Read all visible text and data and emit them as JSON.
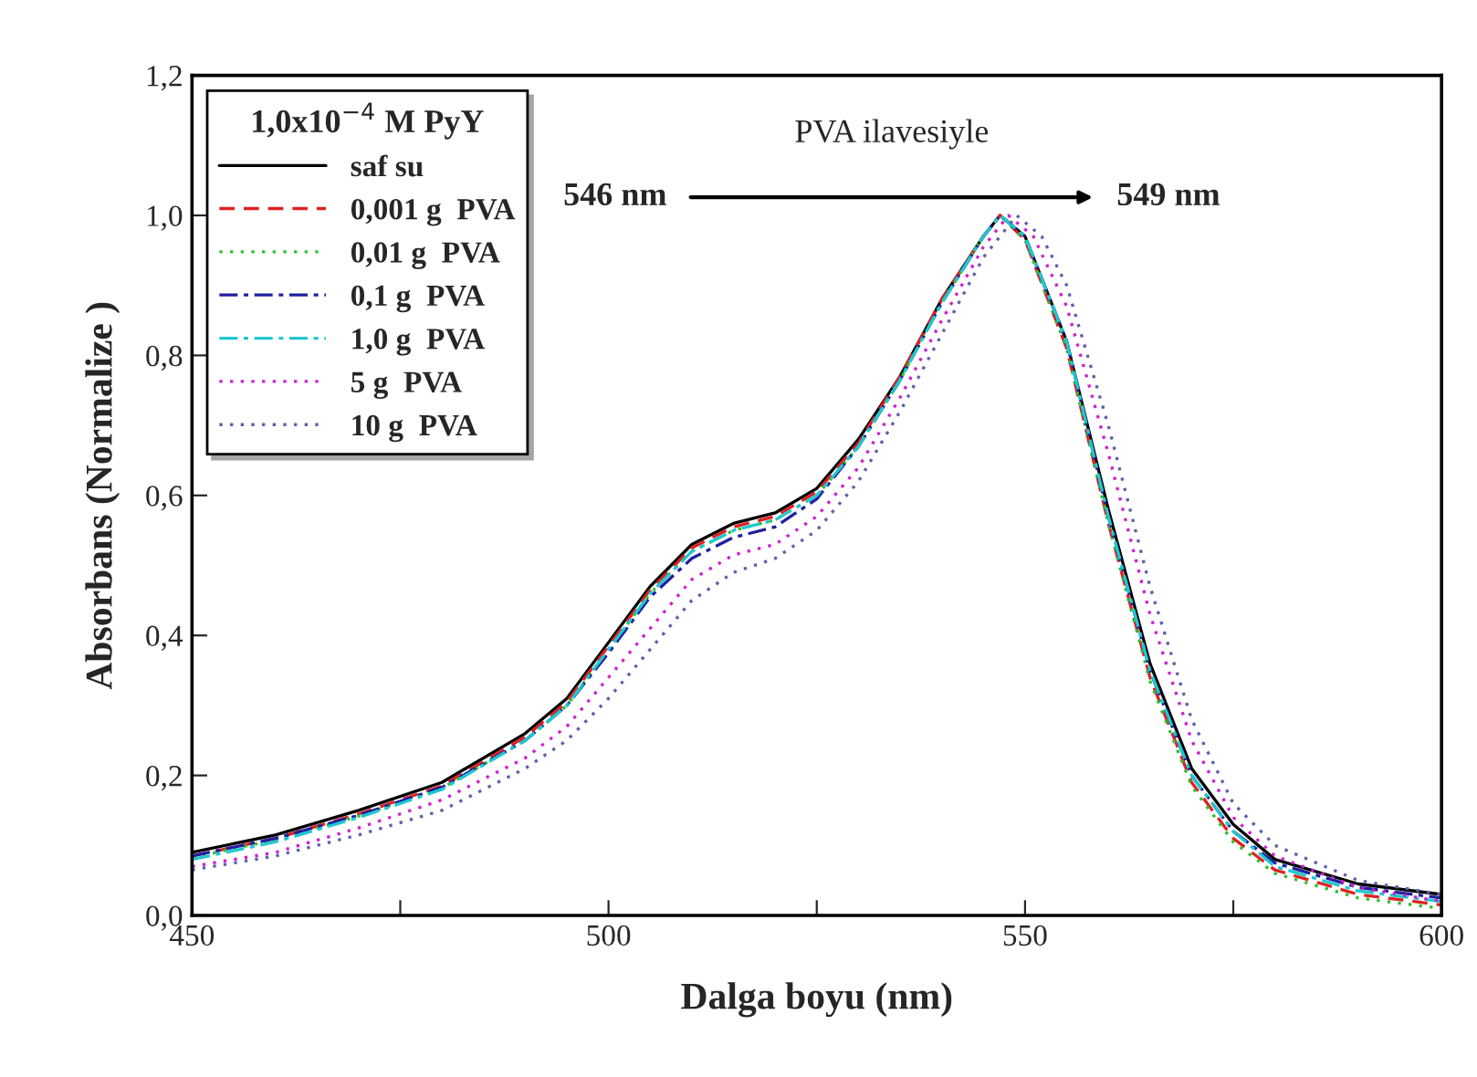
{
  "chart_data": {
    "type": "line",
    "xlabel": "Dalga boyu (nm)",
    "ylabel": "Absorbans (Normalize )",
    "legend_title": "1,0x10$^{−4}$ M PyY",
    "legend": "top left",
    "grid": false,
    "xlim": [
      450,
      600
    ],
    "ylim": [
      0,
      1.2
    ],
    "xticks": [
      450,
      {
        "value": 475,
        "label": null
      },
      500,
      {
        "value": 525,
        "label": null
      },
      550,
      {
        "value": 575,
        "label": null
      },
      600
    ],
    "yticks": [
      {
        "value": 0,
        "label": "0,0"
      },
      {
        "value": 0.2,
        "label": "0,2"
      },
      {
        "value": 0.4,
        "label": "0,4"
      },
      {
        "value": 0.6,
        "label": "0,6"
      },
      {
        "value": 0.8,
        "label": "0,8"
      },
      {
        "value": 1.0,
        "label": "1,0"
      },
      {
        "value": 1.2,
        "label": "1,2"
      }
    ],
    "annotations": [
      "PVA ilavesiyle",
      "546 nm",
      "549 nm"
    ],
    "x": [
      450,
      460,
      470,
      480,
      490,
      495,
      500,
      505,
      510,
      515,
      520,
      525,
      530,
      535,
      540,
      545,
      547,
      550,
      555,
      560,
      565,
      570,
      575,
      580,
      590,
      600
    ],
    "series": [
      {
        "name": "saf su",
        "color": "#000000",
        "line_style": "solid",
        "values": [
          0.09,
          0.115,
          0.15,
          0.19,
          0.26,
          0.31,
          0.39,
          0.47,
          0.53,
          0.56,
          0.575,
          0.61,
          0.68,
          0.77,
          0.88,
          0.97,
          1.0,
          0.97,
          0.82,
          0.58,
          0.36,
          0.21,
          0.13,
          0.08,
          0.045,
          0.03
        ]
      },
      {
        "name": "0,001 g  PVA",
        "color": "#e02020",
        "line_style": "dashed",
        "values": [
          0.085,
          0.11,
          0.145,
          0.185,
          0.255,
          0.305,
          0.385,
          0.465,
          0.525,
          0.555,
          0.57,
          0.605,
          0.675,
          0.77,
          0.88,
          0.97,
          1.0,
          0.965,
          0.81,
          0.56,
          0.34,
          0.19,
          0.11,
          0.065,
          0.03,
          0.015
        ]
      },
      {
        "name": "0,01 g  PVA",
        "color": "#30c030",
        "line_style": "dotted",
        "values": [
          0.083,
          0.108,
          0.142,
          0.182,
          0.25,
          0.3,
          0.38,
          0.46,
          0.52,
          0.55,
          0.565,
          0.6,
          0.67,
          0.765,
          0.875,
          0.97,
          1.0,
          0.965,
          0.81,
          0.56,
          0.335,
          0.185,
          0.105,
          0.06,
          0.025,
          0.01
        ]
      },
      {
        "name": "0,1 g  PVA",
        "color": "#2020a0",
        "line_style": "dashdot",
        "values": [
          0.085,
          0.11,
          0.143,
          0.183,
          0.25,
          0.3,
          0.375,
          0.455,
          0.51,
          0.54,
          0.555,
          0.595,
          0.67,
          0.765,
          0.875,
          0.97,
          1.0,
          0.97,
          0.82,
          0.57,
          0.35,
          0.2,
          0.12,
          0.075,
          0.04,
          0.025
        ]
      },
      {
        "name": "1,0 g  PVA",
        "color": "#20c8d0",
        "line_style": "dashdot",
        "values": [
          0.08,
          0.105,
          0.14,
          0.18,
          0.25,
          0.3,
          0.38,
          0.46,
          0.52,
          0.55,
          0.565,
          0.6,
          0.67,
          0.765,
          0.875,
          0.97,
          1.0,
          0.97,
          0.82,
          0.57,
          0.35,
          0.2,
          0.12,
          0.07,
          0.035,
          0.02
        ]
      },
      {
        "name": "5 g  PVA",
        "color": "#d020d0",
        "line_style": "dotted",
        "x": [
          450,
          460,
          470,
          480,
          490,
          495,
          500,
          505,
          510,
          515,
          520,
          525,
          530,
          535,
          540,
          545,
          548,
          551,
          555,
          560,
          565,
          570,
          575,
          580,
          590,
          600
        ],
        "values": [
          0.07,
          0.09,
          0.125,
          0.165,
          0.225,
          0.27,
          0.34,
          0.41,
          0.48,
          0.515,
          0.53,
          0.57,
          0.64,
          0.74,
          0.85,
          0.955,
          1.0,
          0.97,
          0.87,
          0.66,
          0.43,
          0.25,
          0.14,
          0.085,
          0.04,
          0.02
        ]
      },
      {
        "name": "10 g  PVA",
        "color": "#6060a8",
        "line_style": "dotted",
        "x": [
          450,
          460,
          470,
          480,
          490,
          495,
          500,
          505,
          510,
          515,
          520,
          525,
          530,
          535,
          540,
          545,
          549,
          552,
          555,
          560,
          565,
          570,
          575,
          580,
          590,
          600
        ],
        "values": [
          0.065,
          0.085,
          0.115,
          0.15,
          0.21,
          0.25,
          0.31,
          0.38,
          0.45,
          0.49,
          0.51,
          0.55,
          0.62,
          0.72,
          0.83,
          0.94,
          1.0,
          0.97,
          0.9,
          0.7,
          0.47,
          0.28,
          0.16,
          0.1,
          0.05,
          0.03
        ]
      }
    ]
  }
}
